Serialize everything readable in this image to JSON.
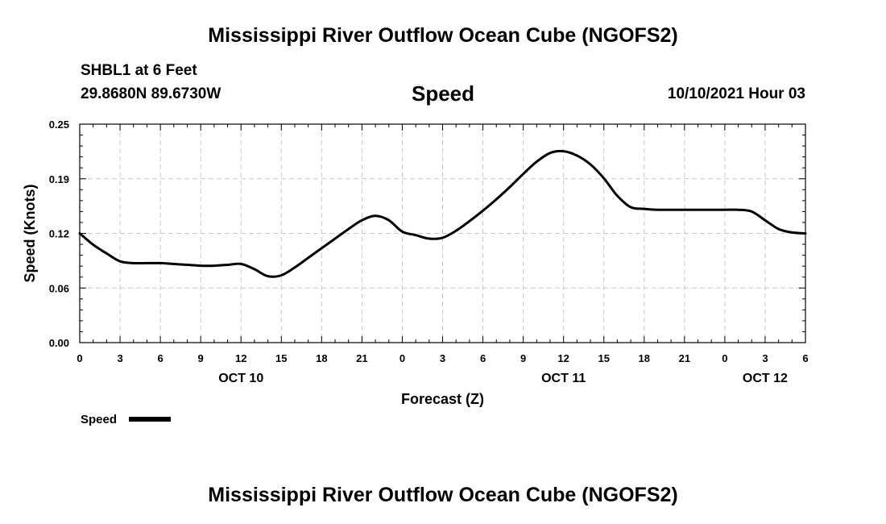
{
  "header": {
    "title": "Mississippi River Outflow Ocean Cube (NGOFS2)",
    "station": "SHBL1 at 6 Feet",
    "coords": "29.8680N  89.6730W",
    "variable": "Speed",
    "datetime": "10/10/2021 Hour 03"
  },
  "footer": {
    "title": "Mississippi River Outflow Ocean Cube (NGOFS2)"
  },
  "chart_data": {
    "type": "line",
    "title": "Speed",
    "xlabel": "Forecast (Z)",
    "ylabel": "Speed (Knots)",
    "xlim": [
      0,
      54
    ],
    "ylim": [
      0,
      0.25
    ],
    "grid": true,
    "x_tick_values": [
      0,
      3,
      6,
      9,
      12,
      15,
      18,
      21,
      24,
      27,
      30,
      33,
      36,
      39,
      42,
      45,
      48,
      51,
      54
    ],
    "x_tick_labels": [
      "0",
      "3",
      "6",
      "9",
      "12",
      "15",
      "18",
      "21",
      "0",
      "3",
      "6",
      "9",
      "12",
      "15",
      "18",
      "21",
      "0",
      "3",
      "6"
    ],
    "y_tick_values": [
      0,
      0.0625,
      0.125,
      0.1875,
      0.25
    ],
    "y_tick_labels": [
      "0.00",
      "0.06",
      "0.12",
      "0.19",
      "0.25"
    ],
    "date_labels": [
      {
        "x": 12,
        "label": "OCT 10"
      },
      {
        "x": 36,
        "label": "OCT 11"
      },
      {
        "x": 51,
        "label": "OCT 12"
      }
    ],
    "legend": {
      "label": "Speed",
      "placement": "bottom-left"
    },
    "series": [
      {
        "name": "Speed",
        "color": "#000000",
        "x": [
          0,
          1,
          2,
          3,
          4,
          5,
          6,
          7,
          8,
          9,
          10,
          11,
          12,
          13,
          14,
          15,
          16,
          17,
          18,
          19,
          20,
          21,
          22,
          23,
          24,
          25,
          26,
          27,
          28,
          29,
          30,
          31,
          32,
          33,
          34,
          35,
          36,
          37,
          38,
          39,
          40,
          41,
          42,
          43,
          44,
          45,
          46,
          47,
          48,
          49,
          50,
          51,
          52,
          53,
          54
        ],
        "values": [
          0.125,
          0.112,
          0.102,
          0.093,
          0.091,
          0.091,
          0.091,
          0.09,
          0.089,
          0.088,
          0.088,
          0.089,
          0.09,
          0.084,
          0.076,
          0.077,
          0.086,
          0.097,
          0.108,
          0.119,
          0.13,
          0.14,
          0.145,
          0.14,
          0.127,
          0.123,
          0.119,
          0.12,
          0.128,
          0.139,
          0.151,
          0.164,
          0.178,
          0.193,
          0.207,
          0.217,
          0.219,
          0.214,
          0.204,
          0.188,
          0.168,
          0.155,
          0.153,
          0.152,
          0.152,
          0.152,
          0.152,
          0.152,
          0.152,
          0.152,
          0.15,
          0.14,
          0.13,
          0.126,
          0.125
        ]
      }
    ]
  }
}
